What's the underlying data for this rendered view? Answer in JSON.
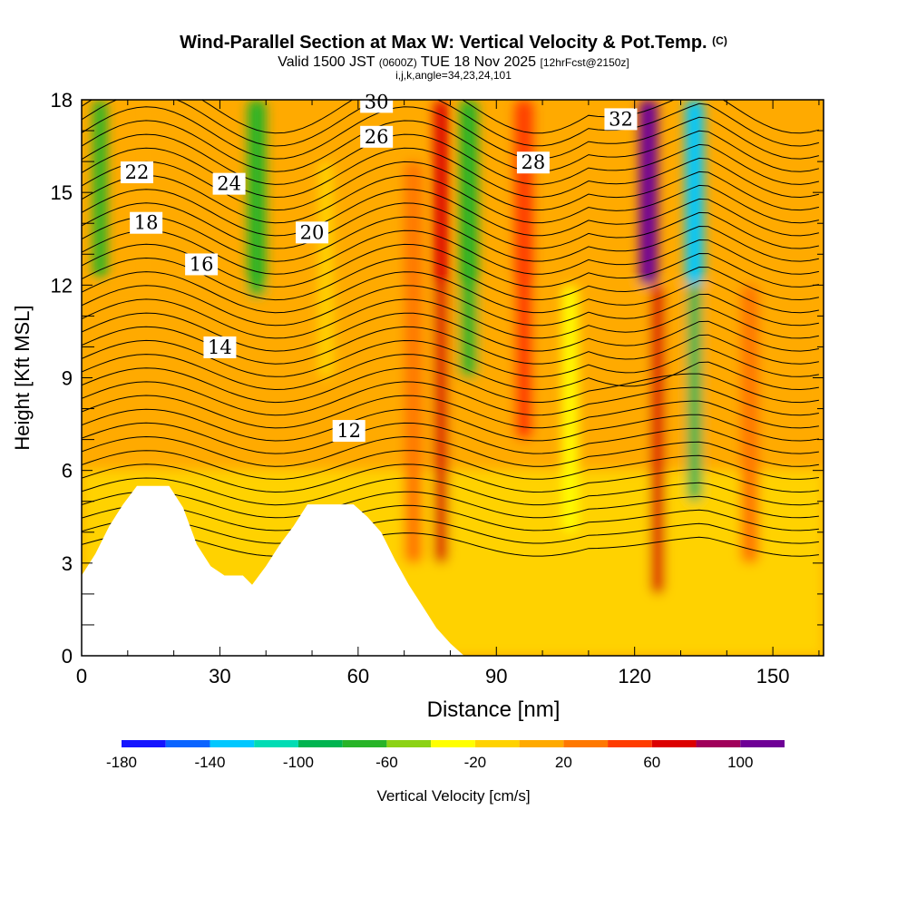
{
  "header": {
    "title": "Wind-Parallel Section at Max W: Vertical Velocity & Pot.Temp.",
    "title_flag": "(C)",
    "subtitle_pre": "Valid 1500 JST",
    "subtitle_utc": "(0600Z)",
    "subtitle_mid": "TUE 18 Nov 2025",
    "subtitle_run": "[12hrFcst@2150z]",
    "index_line": "i,j,k,angle=34,23,24,101"
  },
  "chart_data": {
    "type": "heatmap",
    "xlabel": "Distance [nm]",
    "ylabel": "Height [Kft MSL]",
    "xlim": [
      0,
      161
    ],
    "ylim": [
      0,
      18
    ],
    "x_ticks": [
      0,
      30,
      60,
      90,
      120,
      150
    ],
    "x_tick_labels": [
      "0",
      "30",
      "60",
      "90",
      "120",
      "150"
    ],
    "y_ticks": [
      0,
      3,
      6,
      9,
      12,
      15,
      18
    ],
    "y_tick_labels": [
      "0",
      "3",
      "6",
      "9",
      "12",
      "15",
      "18"
    ],
    "colorbar": {
      "label": "Vertical Velocity [cm/s]",
      "levels": [
        -180,
        -160,
        -140,
        -120,
        -100,
        -80,
        -60,
        -40,
        -20,
        0,
        20,
        40,
        60,
        80,
        100,
        120
      ],
      "tick_values": [
        -180,
        -140,
        -100,
        -60,
        -20,
        20,
        60,
        100
      ],
      "tick_labels": [
        "-180",
        "-140",
        "-100",
        "-60",
        "-20",
        "20",
        "60",
        "100"
      ],
      "colors": [
        "#1414ff",
        "#0a64ff",
        "#00c8ff",
        "#00dcb4",
        "#00b450",
        "#28b428",
        "#8cd214",
        "#ffff00",
        "#ffd200",
        "#ffaa00",
        "#ff7800",
        "#ff3c00",
        "#dc0000",
        "#a0005a",
        "#6e0096"
      ]
    },
    "w_columns": [
      {
        "x": 4,
        "w": -80,
        "width": 3,
        "top": 18,
        "bottom": 12.2
      },
      {
        "x": 16,
        "w": 10,
        "width": 3,
        "top": 18,
        "bottom": 12
      },
      {
        "x": 38,
        "w": -70,
        "width": 4,
        "top": 18,
        "bottom": 11.6
      },
      {
        "x": 53,
        "w": -20,
        "width": 3,
        "top": 16,
        "bottom": 9
      },
      {
        "x": 72,
        "w": 20,
        "width": 4,
        "top": 16,
        "bottom": 3
      },
      {
        "x": 78,
        "w": 60,
        "width": 3,
        "top": 18,
        "bottom": 3
      },
      {
        "x": 84,
        "w": -80,
        "width": 4,
        "top": 18,
        "bottom": 9
      },
      {
        "x": 96,
        "w": 40,
        "width": 4,
        "top": 18,
        "bottom": 7
      },
      {
        "x": 106,
        "w": -30,
        "width": 3,
        "top": 12,
        "bottom": 4
      },
      {
        "x": 123,
        "w": 100,
        "width": 4,
        "top": 18,
        "bottom": 12
      },
      {
        "x": 125,
        "w": 60,
        "width": 3,
        "top": 12,
        "bottom": 2
      },
      {
        "x": 133,
        "w": -130,
        "width": 4,
        "top": 18,
        "bottom": 12
      },
      {
        "x": 133,
        "w": -90,
        "width": 3,
        "top": 12,
        "bottom": 5
      },
      {
        "x": 145,
        "w": 30,
        "width": 4,
        "top": 12,
        "bottom": 3
      }
    ],
    "terrain": [
      [
        0,
        2.6
      ],
      [
        3,
        3.3
      ],
      [
        6,
        4.2
      ],
      [
        9,
        4.9
      ],
      [
        12,
        5.5
      ],
      [
        19,
        5.5
      ],
      [
        22,
        4.8
      ],
      [
        25,
        3.6
      ],
      [
        28,
        2.9
      ],
      [
        31,
        2.6
      ],
      [
        35,
        2.6
      ],
      [
        37,
        2.3
      ],
      [
        40,
        2.9
      ],
      [
        43,
        3.6
      ],
      [
        46,
        4.2
      ],
      [
        49,
        4.9
      ],
      [
        52,
        4.9
      ],
      [
        56,
        4.9
      ],
      [
        59,
        4.9
      ],
      [
        62,
        4.5
      ],
      [
        65,
        4.0
      ],
      [
        68,
        3.1
      ],
      [
        71,
        2.3
      ],
      [
        74,
        1.6
      ],
      [
        77,
        0.9
      ],
      [
        80,
        0.4
      ],
      [
        83,
        0.0
      ]
    ],
    "theta_contours": [
      {
        "label": "12",
        "base": 7.2,
        "label_x": 58
      },
      {
        "label": "14",
        "base": 10.1,
        "label_x": 30
      },
      {
        "label": "16",
        "base": 12.5,
        "label_x": 26
      },
      {
        "label": "18",
        "base": 13.3,
        "label_x": 14
      },
      {
        "label": "20",
        "base": 14.2,
        "label_x": 50
      },
      {
        "label": "22",
        "base": 14.9,
        "label_x": 12
      },
      {
        "label": "24",
        "base": 15.6,
        "label_x": 32
      },
      {
        "label": "26",
        "base": 16.2,
        "label_x": 64
      },
      {
        "label": "28",
        "base": 16.8,
        "label_x": 98
      },
      {
        "label": "30",
        "base": 17.3,
        "label_x": 64
      },
      {
        "label": "32",
        "base": 17.7,
        "label_x": 117
      }
    ]
  }
}
